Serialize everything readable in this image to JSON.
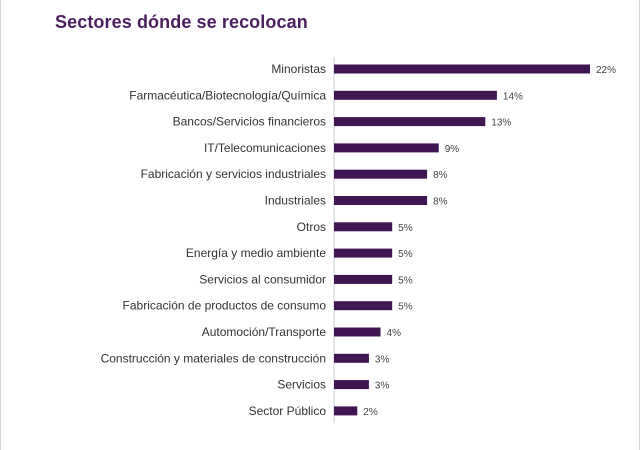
{
  "page": {
    "title": "Sectores dónde se recolocan"
  },
  "colors": {
    "bar": "#3f1552",
    "title": "#4a1f5e"
  },
  "chart_data": {
    "type": "bar",
    "orientation": "horizontal",
    "title": "Sectores dónde se recolocan",
    "xlabel": "",
    "ylabel": "",
    "xlim": [
      0,
      22
    ],
    "grid": false,
    "categories": [
      "Minoristas",
      "Farmacéutica/Biotecnología/Química",
      "Bancos/Servicios financieros",
      "IT/Telecomunicaciones",
      "Fabricación y servicios industriales",
      "Industriales",
      "Otros",
      "Energía y medio ambiente",
      "Servicios al consumidor",
      "Fabricación de productos de consumo",
      "Automoción/Transporte",
      "Construcción y materiales de construcción",
      "Servicios",
      "Sector Público"
    ],
    "values": [
      22,
      14,
      13,
      9,
      8,
      8,
      5,
      5,
      5,
      5,
      4,
      3,
      3,
      2
    ],
    "value_labels": [
      "22%",
      "14%",
      "13%",
      "9%",
      "8%",
      "8%",
      "5%",
      "5%",
      "5%",
      "5%",
      "4%",
      "3%",
      "3%",
      "2%"
    ]
  }
}
